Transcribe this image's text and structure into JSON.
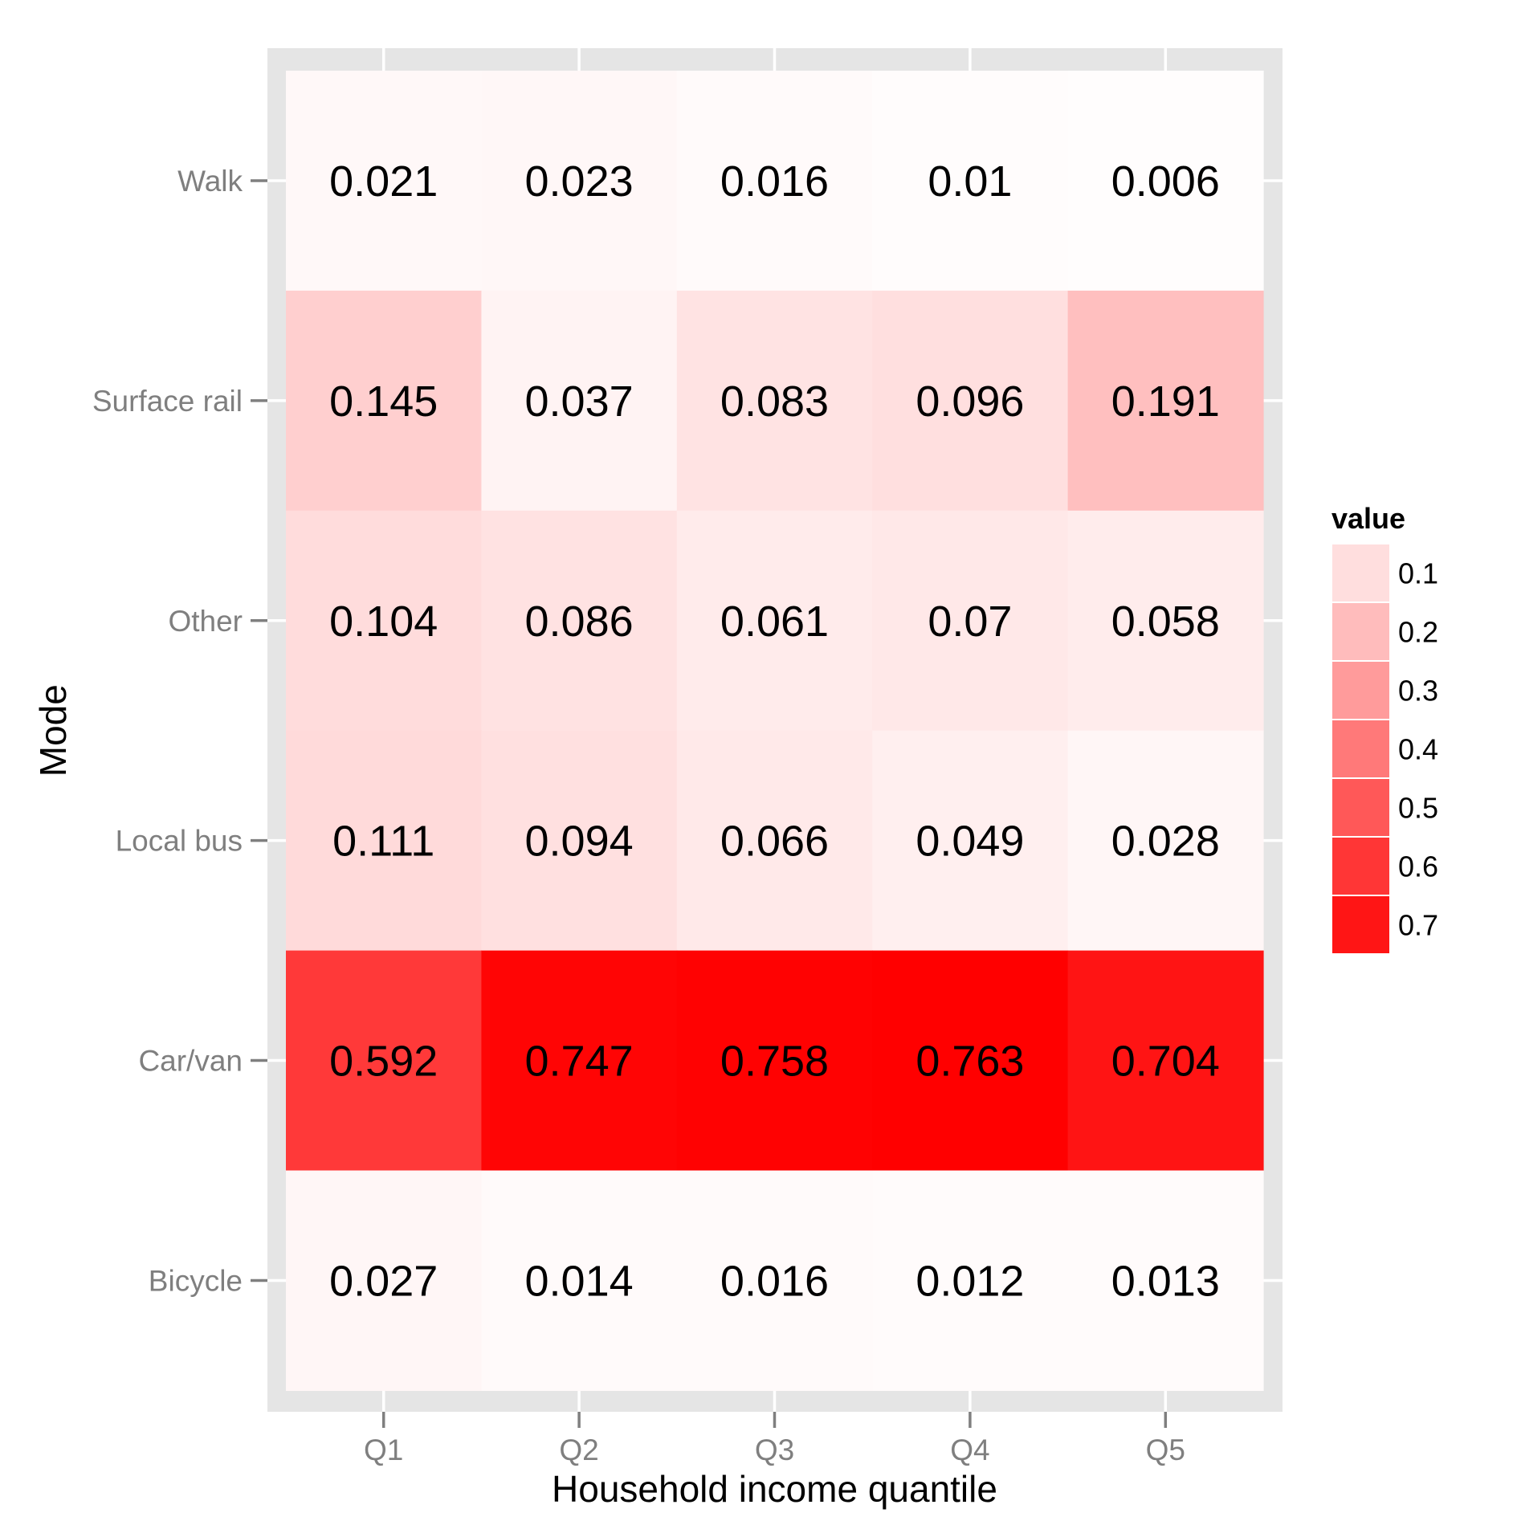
{
  "chart_data": {
    "type": "heatmap",
    "xlabel": "Household income quantile",
    "ylabel": "Mode",
    "x_categories": [
      "Q1",
      "Q2",
      "Q3",
      "Q4",
      "Q5"
    ],
    "y_categories": [
      "Walk",
      "Surface rail",
      "Other",
      "Local bus",
      "Car/van",
      "Bicycle"
    ],
    "values": [
      [
        0.021,
        0.023,
        0.016,
        0.01,
        0.006
      ],
      [
        0.145,
        0.037,
        0.083,
        0.096,
        0.191
      ],
      [
        0.104,
        0.086,
        0.061,
        0.07,
        0.058
      ],
      [
        0.111,
        0.094,
        0.066,
        0.049,
        0.028
      ],
      [
        0.592,
        0.747,
        0.758,
        0.763,
        0.704
      ],
      [
        0.027,
        0.014,
        0.016,
        0.012,
        0.013
      ]
    ],
    "color_scale": {
      "low": "#ffffff",
      "high": "#ff0000",
      "min": 0,
      "max": 0.763
    },
    "legend": {
      "title": "value",
      "position": "right",
      "breaks": [
        0.1,
        0.2,
        0.3,
        0.4,
        0.5,
        0.6,
        0.7
      ],
      "labels": [
        "0.1",
        "0.2",
        "0.3",
        "0.4",
        "0.5",
        "0.6",
        "0.7"
      ]
    },
    "grid": true,
    "panel_background": "#e5e5e5"
  }
}
